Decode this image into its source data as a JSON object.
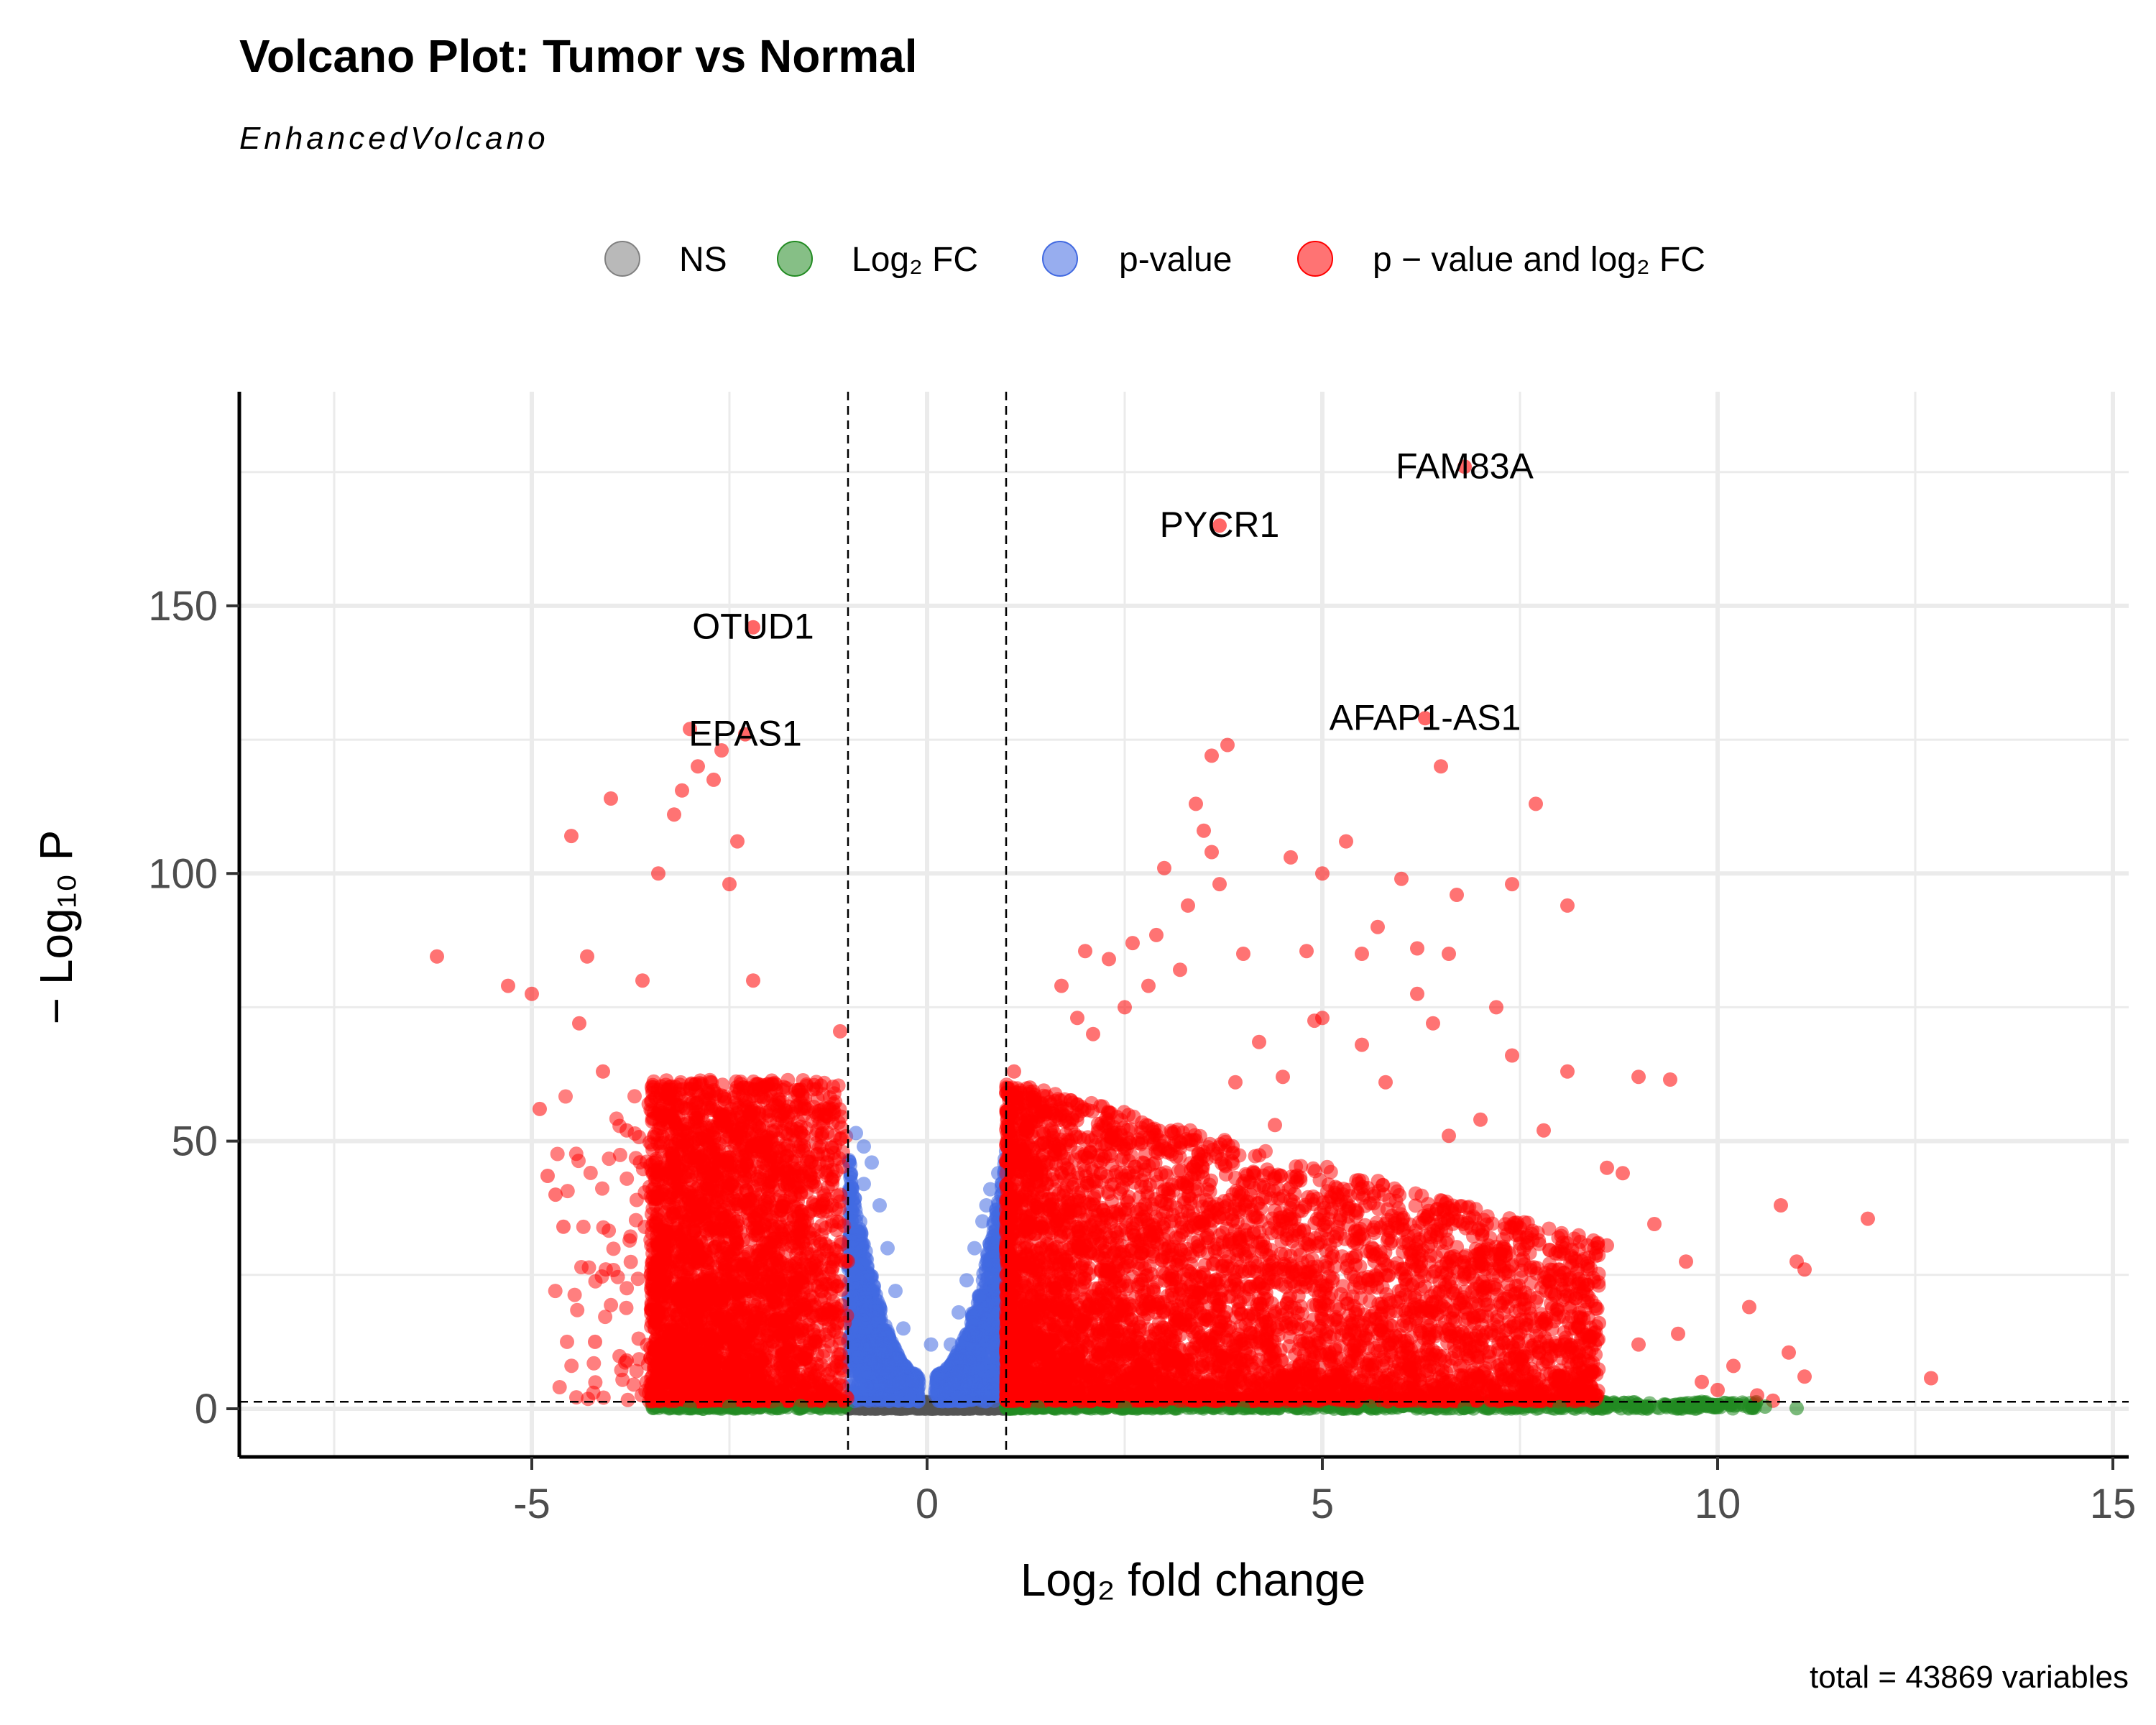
{
  "chart_data": {
    "type": "scatter",
    "title": "Volcano Plot: Tumor vs Normal",
    "subtitle": "EnhancedVolcano",
    "caption": "total = 43869 variables",
    "xlabel": "Log₂ fold change",
    "ylabel": "− Log₁₀ P",
    "xlim": [
      -8.7,
      15.2
    ],
    "ylim": [
      -9,
      190
    ],
    "x_ticks": [
      -5,
      0,
      5,
      10,
      15
    ],
    "y_ticks": [
      0,
      50,
      100,
      150
    ],
    "grid": true,
    "legend_position": "top",
    "fc_cutoff": 1,
    "p_cutoff_neglog10": 1.3,
    "total_variables": 43869,
    "legend": [
      {
        "key": "ns",
        "label": "NS",
        "color": "#808080"
      },
      {
        "key": "fc",
        "label": "Log₂ FC",
        "color": "#228b22"
      },
      {
        "key": "p",
        "label": "p-value",
        "color": "#4169e1"
      },
      {
        "key": "both",
        "label": "p − value and log₂ FC",
        "color": "#ff0000"
      }
    ],
    "colors": {
      "ns": "#555555",
      "fc": "#228b22",
      "p": "#4169e1",
      "both": "#ff0000"
    },
    "labeled_genes": [
      {
        "label": "FAM83A",
        "x": 6.8,
        "y": 176
      },
      {
        "label": "PYCR1",
        "x": 3.7,
        "y": 165
      },
      {
        "label": "OTUD1",
        "x": -2.2,
        "y": 146
      },
      {
        "label": "EPAS1",
        "x": -2.3,
        "y": 126
      },
      {
        "label": "AFAP1-AS1",
        "x": 6.3,
        "y": 129
      }
    ],
    "highlight_points": {
      "both": [
        [
          -6.2,
          84.5
        ],
        [
          -5.3,
          79
        ],
        [
          -5.0,
          77.5
        ],
        [
          -4.9,
          56
        ],
        [
          -4.8,
          43.5
        ],
        [
          -4.6,
          34
        ],
        [
          -4.5,
          107
        ],
        [
          -4.0,
          114
        ],
        [
          -4.3,
          84.5
        ],
        [
          -3.6,
          80
        ],
        [
          -3.4,
          100
        ],
        [
          -3.2,
          111
        ],
        [
          -3.1,
          115.5
        ],
        [
          -2.9,
          120
        ],
        [
          -2.7,
          117.5
        ],
        [
          -2.6,
          123
        ],
        [
          -3.0,
          127
        ],
        [
          -2.4,
          106
        ],
        [
          -2.5,
          98
        ],
        [
          -2.2,
          80
        ],
        [
          -4.4,
          72
        ],
        [
          -4.1,
          63
        ],
        [
          -3.8,
          52
        ],
        [
          -4.7,
          40
        ],
        [
          -4.2,
          12.5
        ],
        [
          -3.8,
          9
        ],
        [
          -1.1,
          70.5
        ],
        [
          -1.3,
          55
        ],
        [
          -1.5,
          47
        ],
        [
          -1.2,
          38
        ],
        [
          3.0,
          101
        ],
        [
          3.5,
          108
        ],
        [
          3.6,
          104
        ],
        [
          3.7,
          98
        ],
        [
          3.3,
          94
        ],
        [
          3.4,
          113
        ],
        [
          3.6,
          122
        ],
        [
          3.8,
          124
        ],
        [
          4.6,
          103
        ],
        [
          5.0,
          100
        ],
        [
          5.3,
          106
        ],
        [
          6.5,
          120
        ],
        [
          6.7,
          96
        ],
        [
          7.7,
          113
        ],
        [
          7.4,
          98
        ],
        [
          8.1,
          94
        ],
        [
          6.0,
          99
        ],
        [
          5.7,
          90
        ],
        [
          6.2,
          77.5
        ],
        [
          5.0,
          73
        ],
        [
          5.5,
          68
        ],
        [
          4.2,
          68.5
        ],
        [
          4.5,
          62
        ],
        [
          7.2,
          75
        ],
        [
          7.4,
          66
        ],
        [
          7.0,
          54
        ],
        [
          8.1,
          63
        ],
        [
          9.0,
          62
        ],
        [
          9.4,
          61.5
        ],
        [
          8.8,
          44
        ],
        [
          9.2,
          34.5
        ],
        [
          8.6,
          30.5
        ],
        [
          8.0,
          26
        ],
        [
          8.3,
          22
        ],
        [
          9.6,
          27.5
        ],
        [
          10.8,
          38
        ],
        [
          11.9,
          35.5
        ],
        [
          11.0,
          27.5
        ],
        [
          11.1,
          26
        ],
        [
          10.4,
          19
        ],
        [
          10.9,
          10.5
        ],
        [
          11.1,
          6
        ],
        [
          12.7,
          5.7
        ],
        [
          10.2,
          8
        ],
        [
          9.8,
          5
        ],
        [
          10.0,
          3.5
        ],
        [
          10.5,
          2.5
        ],
        [
          10.7,
          1.5
        ],
        [
          9.5,
          14
        ],
        [
          9.0,
          12
        ],
        [
          8.5,
          16
        ],
        [
          1.1,
          63
        ],
        [
          1.3,
          60
        ],
        [
          1.5,
          55
        ],
        [
          2.0,
          85.5
        ],
        [
          2.3,
          84
        ],
        [
          2.6,
          87
        ],
        [
          2.9,
          88.5
        ],
        [
          3.2,
          82
        ],
        [
          1.7,
          79
        ],
        [
          2.1,
          70
        ],
        [
          2.5,
          75
        ],
        [
          2.8,
          79
        ],
        [
          4.0,
          85
        ],
        [
          4.8,
          85.5
        ],
        [
          5.5,
          85
        ],
        [
          6.2,
          86
        ],
        [
          6.6,
          85
        ],
        [
          1.9,
          73
        ],
        [
          4.9,
          72.5
        ],
        [
          6.4,
          72
        ],
        [
          5.8,
          61
        ],
        [
          3.9,
          61
        ],
        [
          4.4,
          53
        ],
        [
          6.6,
          51
        ],
        [
          7.8,
          52
        ],
        [
          8.6,
          45
        ],
        [
          7.6,
          31
        ]
      ],
      "p": [
        [
          -0.9,
          51.5
        ],
        [
          -0.8,
          49
        ],
        [
          -0.7,
          46
        ],
        [
          -0.8,
          42
        ],
        [
          -0.6,
          38
        ],
        [
          -0.9,
          35
        ],
        [
          -0.5,
          30
        ],
        [
          -0.4,
          22
        ],
        [
          0.8,
          41
        ],
        [
          0.75,
          38
        ],
        [
          0.7,
          35
        ],
        [
          0.6,
          30
        ],
        [
          0.5,
          24
        ],
        [
          0.4,
          18
        ],
        [
          0.9,
          44
        ],
        [
          0.3,
          12
        ],
        [
          -0.3,
          15
        ],
        [
          0.05,
          12
        ]
      ],
      "fc": [
        [
          -3.0,
          0.2
        ],
        [
          -2.5,
          0.4
        ],
        [
          -1.9,
          0.1
        ],
        [
          -1.6,
          0.5
        ],
        [
          -1.2,
          0.2
        ],
        [
          1.4,
          0.3
        ],
        [
          2.5,
          0.2
        ],
        [
          4.0,
          0.1
        ],
        [
          5.6,
          0.4
        ],
        [
          6.8,
          0.2
        ],
        [
          8.0,
          0.3
        ],
        [
          8.6,
          0.2
        ],
        [
          9.1,
          0.4
        ],
        [
          9.5,
          0.1
        ],
        [
          10.0,
          0.3
        ],
        [
          10.4,
          0.2
        ],
        [
          10.6,
          0.4
        ],
        [
          11.0,
          0.1
        ]
      ]
    },
    "density_params": {
      "both_left": {
        "n": 3200,
        "xmin": -3.5,
        "xmax": -1.0,
        "ymax": 60
      },
      "both_right": {
        "n": 5200,
        "xmin": 1.0,
        "xmax": 8.5,
        "ymax": 60
      },
      "p_band": {
        "n": 1800,
        "xmax_abs": 1.0,
        "ymax": 42
      },
      "fc_band": {
        "n": 1200,
        "xmin": 1.0,
        "xmax": 10.5,
        "ymax": 1.3
      },
      "ns_band": {
        "n": 1000,
        "xmax_abs": 1.0,
        "ymax": 1.3
      }
    }
  }
}
